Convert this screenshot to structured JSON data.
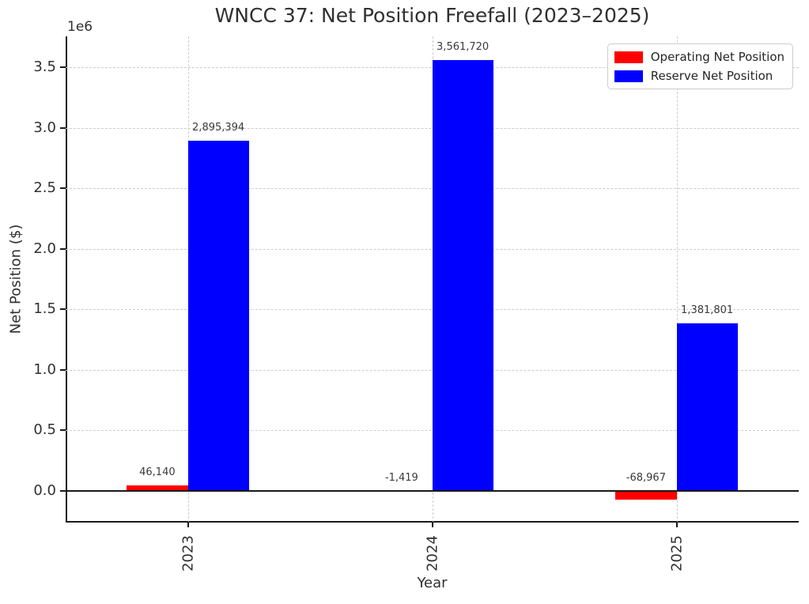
{
  "chart_data": {
    "type": "bar",
    "title": "WNCC 37: Net Position Freefall (2023–2025)",
    "xlabel": "Year",
    "ylabel": "Net Position ($)",
    "y_offset_text": "1e6",
    "categories": [
      "2023",
      "2024",
      "2025"
    ],
    "series": [
      {
        "name": "Operating Net Position",
        "color": "#ff0000",
        "values": [
          46140,
          -1419,
          -68967
        ],
        "value_labels": [
          "46,140",
          "-1,419",
          "-68,967"
        ]
      },
      {
        "name": "Reserve Net Position",
        "color": "#0000ff",
        "values": [
          2895394,
          3561720,
          1381801
        ],
        "value_labels": [
          "2,895,394",
          "3,561,720",
          "1,381,801"
        ]
      }
    ],
    "yticks": {
      "values": [
        0,
        500000,
        1000000,
        1500000,
        2000000,
        2500000,
        3000000,
        3500000
      ],
      "labels": [
        "0.0",
        "0.5",
        "1.0",
        "1.5",
        "2.0",
        "2.5",
        "3.0",
        "3.5"
      ]
    },
    "ylim": [
      -261000,
      3755000
    ],
    "grid": {
      "horizontal": true,
      "vertical": true,
      "style": "dashed",
      "color": "#cccccc"
    },
    "zero_line": true,
    "legend": {
      "position": "upper right"
    }
  }
}
